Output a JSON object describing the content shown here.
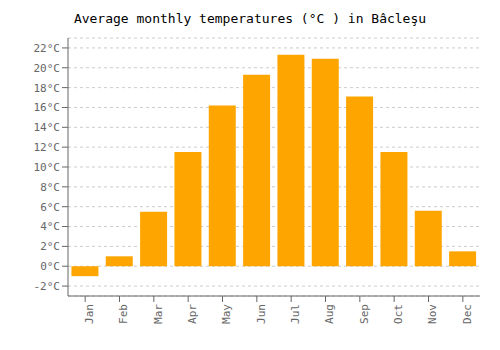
{
  "chart_data": {
    "type": "bar",
    "title": "Average monthly temperatures (°C ) in Bâcleşu",
    "categories": [
      "Jan",
      "Feb",
      "Mar",
      "Apr",
      "May",
      "Jun",
      "Jul",
      "Aug",
      "Sep",
      "Oct",
      "Nov",
      "Dec"
    ],
    "values": [
      -1.0,
      1.0,
      5.5,
      11.5,
      16.2,
      19.3,
      21.3,
      20.9,
      17.1,
      11.5,
      5.6,
      1.5
    ],
    "color": "#FFA500",
    "ylim": [
      -3,
      23
    ],
    "yticks": [
      {
        "value": -2,
        "label": "-2°C"
      },
      {
        "value": 0,
        "label": "0°C"
      },
      {
        "value": 2,
        "label": "2°C"
      },
      {
        "value": 4,
        "label": "4°C"
      },
      {
        "value": 6,
        "label": "6°C"
      },
      {
        "value": 8,
        "label": "8°C"
      },
      {
        "value": 10,
        "label": "10°C"
      },
      {
        "value": 12,
        "label": "12°C"
      },
      {
        "value": 14,
        "label": "14°C"
      },
      {
        "value": 16,
        "label": "16°C"
      },
      {
        "value": 18,
        "label": "18°C"
      },
      {
        "value": 20,
        "label": "20°C"
      },
      {
        "value": 22,
        "label": "22°C"
      }
    ],
    "grid": true
  }
}
